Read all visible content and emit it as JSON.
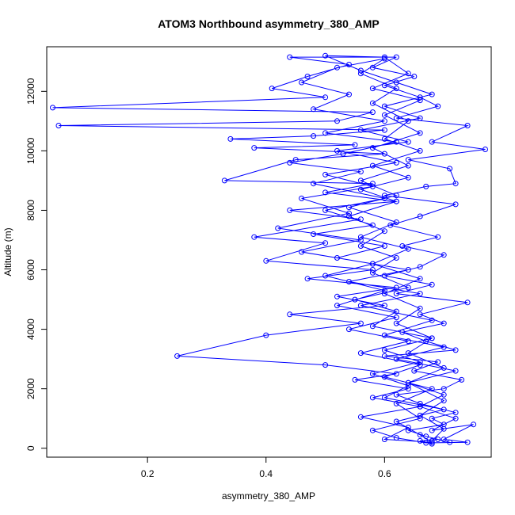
{
  "chart_data": {
    "type": "scatter",
    "title": "ATOM3 Northbound asymmetry_380_AMP",
    "xlabel": "asymmetry_380_AMP",
    "ylabel": "Altitude (m)",
    "xlim": [
      0.03,
      0.78
    ],
    "ylim": [
      -300,
      13500
    ],
    "x_ticks": [
      0.2,
      0.4,
      0.6
    ],
    "y_ticks": [
      0,
      2000,
      4000,
      6000,
      8000,
      10000,
      12000
    ],
    "series_color": "#0000ff",
    "markers": "open-circle",
    "connected": true,
    "series": [
      {
        "points": [
          [
            0.68,
            150
          ],
          [
            0.66,
            250
          ],
          [
            0.69,
            300
          ],
          [
            0.71,
            200
          ],
          [
            0.67,
            400
          ],
          [
            0.64,
            600
          ],
          [
            0.7,
            800
          ],
          [
            0.68,
            1000
          ],
          [
            0.72,
            1200
          ],
          [
            0.66,
            1500
          ],
          [
            0.62,
            1800
          ],
          [
            0.7,
            2000
          ],
          [
            0.73,
            2300
          ],
          [
            0.65,
            2600
          ],
          [
            0.69,
            2900
          ],
          [
            0.6,
            3100
          ],
          [
            0.72,
            3300
          ],
          [
            0.67,
            3600
          ],
          [
            0.63,
            3900
          ],
          [
            0.7,
            4200
          ],
          [
            0.66,
            4500
          ],
          [
            0.74,
            4900
          ],
          [
            0.62,
            5200
          ],
          [
            0.68,
            5500
          ],
          [
            0.6,
            5800
          ],
          [
            0.66,
            6100
          ],
          [
            0.7,
            6500
          ],
          [
            0.63,
            6800
          ],
          [
            0.69,
            7100
          ],
          [
            0.61,
            7500
          ],
          [
            0.66,
            7800
          ],
          [
            0.72,
            8200
          ],
          [
            0.6,
            8500
          ],
          [
            0.67,
            8800
          ],
          [
            0.72,
            8900
          ],
          [
            0.71,
            9400
          ],
          [
            0.64,
            9700
          ],
          [
            0.77,
            10050
          ],
          [
            0.68,
            10300
          ],
          [
            0.74,
            10850
          ],
          [
            0.62,
            11100
          ],
          [
            0.69,
            11500
          ],
          [
            0.66,
            11800
          ],
          [
            0.6,
            12200
          ],
          [
            0.65,
            12500
          ],
          [
            0.58,
            12800
          ],
          [
            0.62,
            13150
          ],
          [
            0.44,
            13150
          ],
          [
            0.54,
            12900
          ],
          [
            0.47,
            12500
          ],
          [
            0.41,
            12100
          ],
          [
            0.5,
            11800
          ],
          [
            0.04,
            11450
          ],
          [
            0.58,
            11300
          ],
          [
            0.52,
            11000
          ],
          [
            0.05,
            10850
          ],
          [
            0.6,
            10700
          ],
          [
            0.48,
            10500
          ],
          [
            0.34,
            10400
          ],
          [
            0.55,
            10200
          ],
          [
            0.38,
            10100
          ],
          [
            0.6,
            9900
          ],
          [
            0.45,
            9700
          ],
          [
            0.33,
            9000
          ],
          [
            0.58,
            8900
          ],
          [
            0.5,
            8600
          ],
          [
            0.62,
            8300
          ],
          [
            0.44,
            8000
          ],
          [
            0.56,
            7700
          ],
          [
            0.38,
            7100
          ],
          [
            0.5,
            6900
          ],
          [
            0.4,
            6300
          ],
          [
            0.58,
            6000
          ],
          [
            0.47,
            5700
          ],
          [
            0.62,
            5400
          ],
          [
            0.52,
            5100
          ],
          [
            0.6,
            4800
          ],
          [
            0.44,
            4500
          ],
          [
            0.56,
            4200
          ],
          [
            0.4,
            3800
          ],
          [
            0.25,
            3100
          ],
          [
            0.5,
            2800
          ],
          [
            0.62,
            2500
          ],
          [
            0.55,
            2300
          ],
          [
            0.64,
            2000
          ],
          [
            0.58,
            1700
          ],
          [
            0.66,
            1400
          ],
          [
            0.56,
            1050
          ],
          [
            0.64,
            700
          ],
          [
            0.6,
            300
          ],
          [
            0.68,
            200
          ],
          [
            0.66,
            450
          ],
          [
            0.62,
            900
          ],
          [
            0.7,
            1300
          ],
          [
            0.6,
            1700
          ],
          [
            0.64,
            2100
          ],
          [
            0.58,
            2500
          ],
          [
            0.66,
            2900
          ],
          [
            0.6,
            3300
          ],
          [
            0.68,
            3700
          ],
          [
            0.58,
            4100
          ],
          [
            0.62,
            4600
          ],
          [
            0.55,
            5000
          ],
          [
            0.64,
            5400
          ],
          [
            0.58,
            5900
          ],
          [
            0.62,
            6400
          ],
          [
            0.56,
            6800
          ],
          [
            0.6,
            7300
          ],
          [
            0.54,
            7800
          ],
          [
            0.62,
            8300
          ],
          [
            0.56,
            8700
          ],
          [
            0.64,
            9100
          ],
          [
            0.58,
            9500
          ],
          [
            0.66,
            10000
          ],
          [
            0.6,
            10400
          ],
          [
            0.64,
            11000
          ],
          [
            0.58,
            11600
          ],
          [
            0.62,
            12100
          ],
          [
            0.56,
            12600
          ],
          [
            0.6,
            13100
          ],
          [
            0.52,
            12800
          ],
          [
            0.46,
            12300
          ],
          [
            0.54,
            11900
          ],
          [
            0.48,
            11400
          ],
          [
            0.6,
            11000
          ],
          [
            0.5,
            10600
          ],
          [
            0.62,
            10300
          ],
          [
            0.53,
            9900
          ],
          [
            0.44,
            9600
          ],
          [
            0.56,
            9300
          ],
          [
            0.48,
            8900
          ],
          [
            0.6,
            8400
          ],
          [
            0.5,
            8000
          ],
          [
            0.58,
            7500
          ],
          [
            0.48,
            7200
          ],
          [
            0.6,
            6800
          ],
          [
            0.52,
            6400
          ],
          [
            0.64,
            6000
          ],
          [
            0.54,
            5600
          ],
          [
            0.66,
            5200
          ],
          [
            0.56,
            4800
          ],
          [
            0.68,
            4300
          ],
          [
            0.6,
            3800
          ],
          [
            0.7,
            3400
          ],
          [
            0.62,
            3000
          ],
          [
            0.72,
            2600
          ],
          [
            0.64,
            2200
          ],
          [
            0.7,
            1800
          ],
          [
            0.66,
            1400
          ],
          [
            0.72,
            1000
          ],
          [
            0.68,
            600
          ],
          [
            0.75,
            800
          ],
          [
            0.7,
            300
          ],
          [
            0.74,
            200
          ],
          [
            0.67,
            180
          ],
          [
            0.62,
            350
          ],
          [
            0.58,
            600
          ],
          [
            0.66,
            1000
          ],
          [
            0.62,
            1500
          ],
          [
            0.68,
            2000
          ],
          [
            0.6,
            2400
          ],
          [
            0.66,
            2800
          ],
          [
            0.56,
            3200
          ],
          [
            0.64,
            3600
          ],
          [
            0.54,
            4000
          ],
          [
            0.62,
            4400
          ],
          [
            0.52,
            4800
          ],
          [
            0.6,
            5300
          ],
          [
            0.5,
            5800
          ],
          [
            0.58,
            6200
          ],
          [
            0.46,
            6600
          ],
          [
            0.56,
            7000
          ],
          [
            0.42,
            7400
          ],
          [
            0.54,
            7900
          ],
          [
            0.46,
            8400
          ],
          [
            0.58,
            8800
          ],
          [
            0.5,
            9200
          ],
          [
            0.62,
            9600
          ],
          [
            0.52,
            10000
          ],
          [
            0.64,
            10300
          ],
          [
            0.56,
            10700
          ],
          [
            0.66,
            11100
          ],
          [
            0.6,
            11500
          ],
          [
            0.68,
            11900
          ],
          [
            0.62,
            12300
          ],
          [
            0.56,
            12700
          ],
          [
            0.5,
            13200
          ],
          [
            0.6,
            13150
          ],
          [
            0.64,
            12600
          ],
          [
            0.58,
            12100
          ],
          [
            0.66,
            11700
          ],
          [
            0.6,
            11200
          ],
          [
            0.66,
            10600
          ],
          [
            0.58,
            10100
          ],
          [
            0.64,
            9500
          ],
          [
            0.56,
            9000
          ],
          [
            0.62,
            8500
          ],
          [
            0.54,
            8100
          ],
          [
            0.62,
            7600
          ],
          [
            0.56,
            7100
          ],
          [
            0.64,
            6700
          ],
          [
            0.58,
            6200
          ],
          [
            0.66,
            5700
          ],
          [
            0.6,
            5200
          ],
          [
            0.66,
            4700
          ],
          [
            0.62,
            4200
          ],
          [
            0.68,
            3700
          ],
          [
            0.64,
            3200
          ],
          [
            0.7,
            2700
          ],
          [
            0.64,
            2200
          ],
          [
            0.7,
            1600
          ],
          [
            0.66,
            1100
          ],
          [
            0.7,
            650
          ],
          [
            0.68,
            250
          ]
        ]
      }
    ]
  }
}
